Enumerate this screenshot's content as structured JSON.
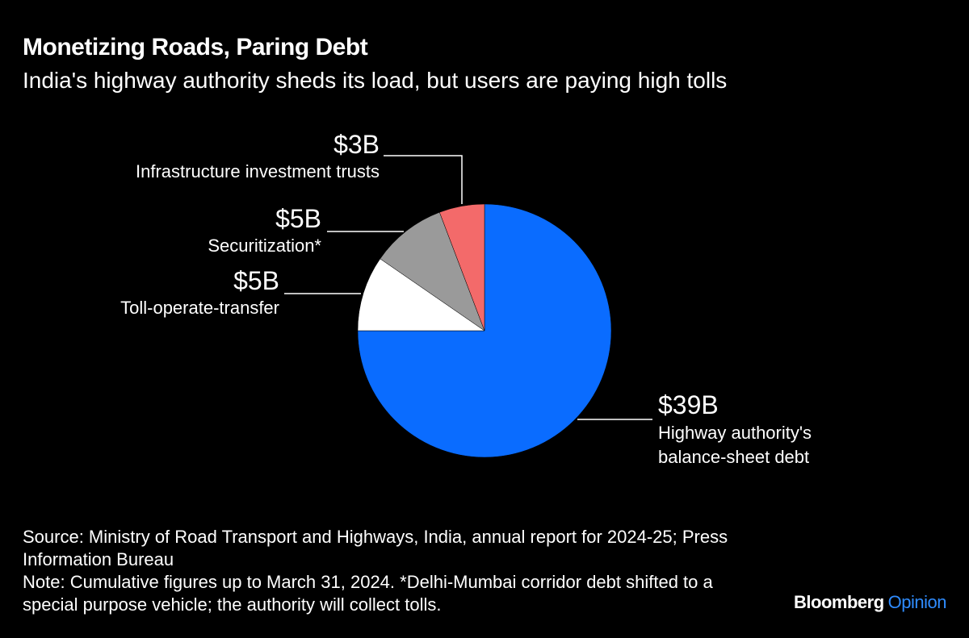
{
  "chart_data": {
    "type": "pie",
    "title": "Monetizing Roads, Paring Debt",
    "subtitle": "India's highway authority sheds its load, but users are paying high tolls",
    "categories": [
      "Highway authority's balance-sheet debt",
      "Toll-operate-transfer",
      "Securitization*",
      "Infrastructure investment trusts"
    ],
    "values": [
      39,
      5,
      5,
      3
    ],
    "value_labels": [
      "$39B",
      "$5B",
      "$5B",
      "$3B"
    ],
    "colors": [
      "#0a6cff",
      "#ffffff",
      "#9a9a9a",
      "#f36a6a"
    ],
    "source": "Source: Ministry of Road Transport and Highways, India, annual report for 2024-25; Press Information Bureau",
    "note": "Note: Cumulative figures up to March 31, 2024. *Delhi-Mumbai corridor debt shifted to a special purpose vehicle; the authority will collect tolls.",
    "logo": {
      "brand": "Bloomberg",
      "product": "Opinion"
    }
  }
}
